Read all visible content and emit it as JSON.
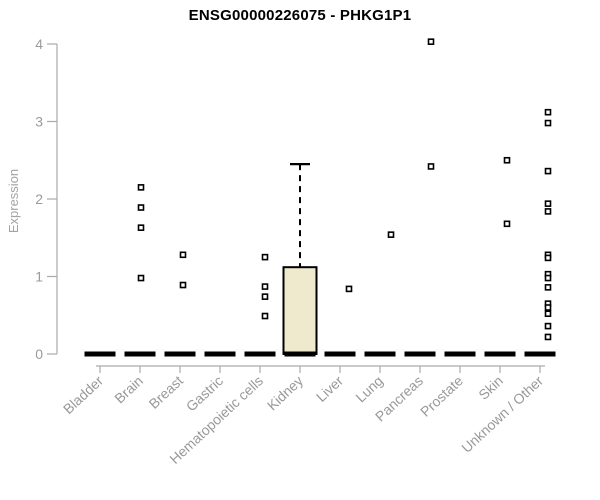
{
  "window": {
    "background": "#FFFFFF"
  },
  "chart_data": {
    "type": "box",
    "title": "ENSG00000226075 - PHKG1P1",
    "ylabel": "Expression",
    "xlabel": "",
    "ylim": [
      0,
      4
    ],
    "yticks": [
      0,
      1,
      2,
      3,
      4
    ],
    "grid": false,
    "legend": null,
    "marker": "open-square",
    "colors": {
      "title": "#000000",
      "axis": "#AAAAAA",
      "tick_label": "#9B9B9B",
      "category_label": "#999999",
      "box_fill": "#EFE9CD",
      "box_border": "#000000",
      "median": "#000000",
      "point_stroke": "#000000",
      "point_fill": "#FFFFFF"
    },
    "categories": [
      "Bladder",
      "Brain",
      "Breast",
      "Gastric",
      "Hematopoietic cells",
      "Kidney",
      "Liver",
      "Lung",
      "Pancreas",
      "Prostate",
      "Skin",
      "Unknown / Other"
    ],
    "series": [
      {
        "category": "Bladder",
        "median": 0,
        "points": [],
        "x_jitter": 0
      },
      {
        "category": "Brain",
        "median": 0,
        "points": [
          2.15,
          1.89,
          1.63,
          0.98
        ],
        "x_jitter": 1
      },
      {
        "category": "Breast",
        "median": 0,
        "points": [
          1.28,
          0.89
        ],
        "x_jitter": 3
      },
      {
        "category": "Gastric",
        "median": 0,
        "points": [],
        "x_jitter": 0
      },
      {
        "category": "Hematopoietic cells",
        "median": 0,
        "points": [
          1.25,
          0.87,
          0.74,
          0.49
        ],
        "x_jitter": 5
      },
      {
        "category": "Kidney",
        "median": 0,
        "box": {
          "q1": 0,
          "q3": 1.12,
          "whisker_low": 0,
          "whisker_high": 2.45
        },
        "points": [],
        "x_jitter": 0
      },
      {
        "category": "Liver",
        "median": 0,
        "points": [
          0.84
        ],
        "x_jitter": 9
      },
      {
        "category": "Lung",
        "median": 0,
        "points": [
          1.54
        ],
        "x_jitter": 11
      },
      {
        "category": "Pancreas",
        "median": 0,
        "points": [
          4.03,
          2.42
        ],
        "x_jitter": 11
      },
      {
        "category": "Prostate",
        "median": 0,
        "points": [],
        "x_jitter": 0
      },
      {
        "category": "Skin",
        "median": 0,
        "points": [
          2.5,
          1.68
        ],
        "x_jitter": 7
      },
      {
        "category": "Unknown / Other",
        "median": 0,
        "points": [
          3.12,
          2.98,
          2.36,
          1.94,
          1.84,
          1.28,
          1.24,
          1.03,
          0.98,
          0.86,
          0.65,
          0.6,
          0.52,
          0.36,
          0.22
        ],
        "x_jitter": 8
      }
    ]
  }
}
